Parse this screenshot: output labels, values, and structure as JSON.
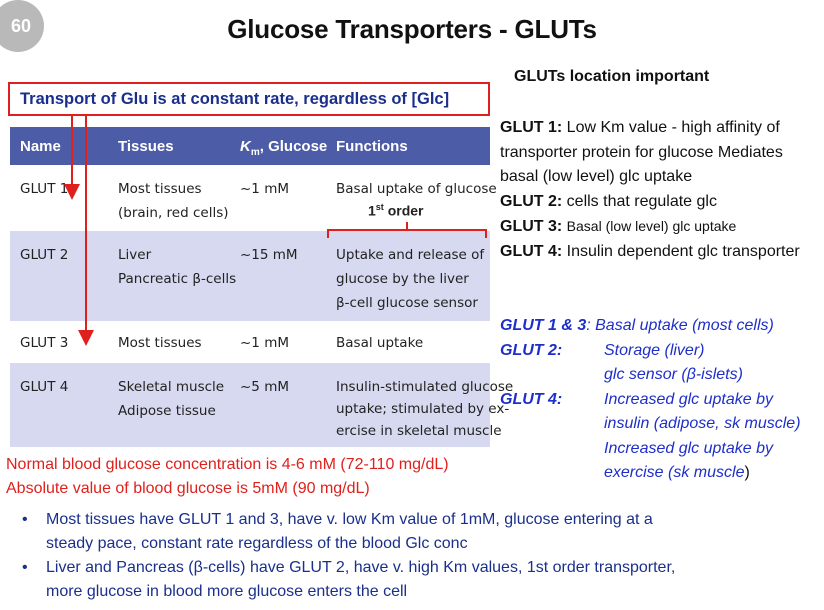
{
  "slide_number": "60",
  "title": "Glucose Transporters - GLUTs",
  "subtitle": "Transport of Glu is at constant rate, regardless of [Glc]",
  "table": {
    "headers": [
      "Name",
      "Tissues",
      "Km, Glucose",
      "Functions"
    ],
    "header_km_main": "K",
    "header_km_sub": "m",
    "header_km_rest": ", Glucose",
    "rows": [
      {
        "name": "GLUT 1",
        "tissues": [
          "Most tissues",
          "(brain, red cells)"
        ],
        "km": "~1 mM",
        "functions": [
          "Basal uptake of glucose"
        ]
      },
      {
        "name": "GLUT 2",
        "tissues": [
          "Liver",
          "Pancreatic β-cells"
        ],
        "km": "~15 mM",
        "functions": [
          "Uptake and release of",
          "glucose by the liver",
          "β-cell glucose sensor"
        ]
      },
      {
        "name": "GLUT 3",
        "tissues": [
          "Most tissues"
        ],
        "km": "~1 mM",
        "functions": [
          "Basal uptake"
        ]
      },
      {
        "name": "GLUT 4",
        "tissues": [
          "Skeletal muscle",
          "Adipose tissue"
        ],
        "km": "~5 mM",
        "functions": [
          "Insulin-stimulated glucose",
          "uptake; stimulated by ex-",
          "ercise in skeletal muscle"
        ]
      }
    ],
    "annotation_first_order_num": "1",
    "annotation_first_order_sup": "st",
    "annotation_first_order_rest": " order"
  },
  "right_panel": {
    "heading": "GLUTs location important",
    "items": [
      {
        "label": "GLUT 1:",
        "text": "Low Km value - high affinity of transporter protein for glucose Mediates basal (low level) glc uptake"
      },
      {
        "label": "GLUT 2:",
        "text": "cells that regulate glc"
      },
      {
        "label": "GLUT 3:",
        "text": "Basal (low level) glc uptake"
      },
      {
        "label": "GLUT 4:",
        "text": "Insulin dependent glc transporter"
      }
    ],
    "summary": {
      "glut13_label": "GLUT 1 & 3",
      "glut13_text": ": Basal uptake (most cells)",
      "glut2_label": "GLUT 2:",
      "glut2_lines": [
        "Storage (liver)",
        "glc sensor (β-islets)"
      ],
      "glut4_label": "GLUT 4:",
      "glut4_lines": [
        "Increased glc uptake by",
        "insulin (adipose, sk muscle)",
        "Increased glc uptake by",
        "exercise (sk muscle"
      ],
      "glut4_close": ")"
    }
  },
  "notes_red": [
    "Normal blood glucose concentration is 4-6 mM (72-110 mg/dL)",
    "Absolute value of blood glucose is 5mM (90 mg/dL)"
  ],
  "bullets": [
    [
      "Most tissues have GLUT 1 and 3, have v. low Km value of 1mM, glucose entering  at a",
      "steady pace, constant rate regardless of the blood Glc conc"
    ],
    [
      "Liver and Pancreas (β-cells) have GLUT 2, have v. high Km values, 1st order transporter,",
      "more glucose in blood more glucose enters the cell"
    ]
  ],
  "colors": {
    "red": "#e0201c",
    "navy": "#1a2f8c",
    "blue": "#1e2fc9",
    "table_header": "#4d5ca7",
    "table_tint": "#d6d9ef"
  }
}
